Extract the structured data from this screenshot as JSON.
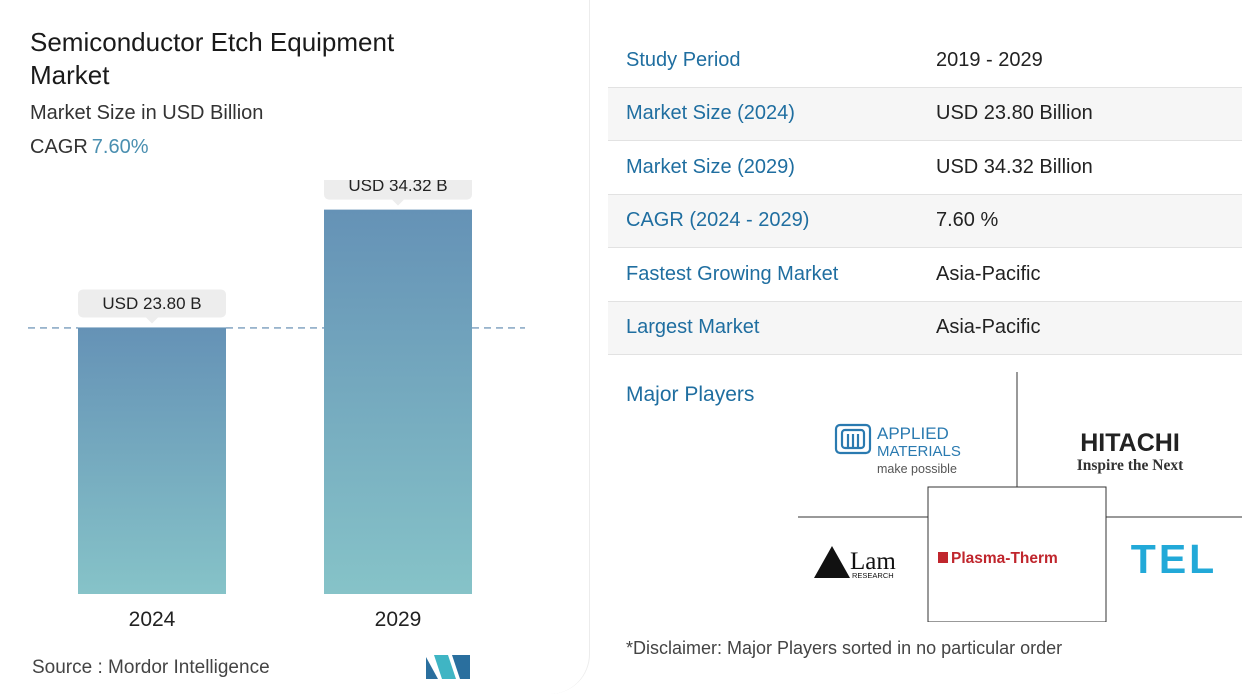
{
  "header": {
    "title": "Semiconductor Etch Equipment Market",
    "subtitle": "Market Size in USD Billion",
    "cagr_label": "CAGR",
    "cagr_value": "7.60%"
  },
  "chart_data": {
    "type": "bar",
    "categories": [
      "2024",
      "2029"
    ],
    "values": [
      23.8,
      34.32
    ],
    "data_labels": [
      "USD 23.80 B",
      "USD 34.32 B"
    ],
    "ylim": [
      0,
      36
    ],
    "reference_line": 23.8,
    "colors": {
      "bar_top": "#6592b6",
      "bar_bottom": "#86c3c8",
      "dashed": "#5b86ad"
    }
  },
  "source": {
    "label": "Source :",
    "name": "Mordor Intelligence"
  },
  "summary": {
    "rows": [
      {
        "key": "Study Period",
        "value": "2019 - 2029"
      },
      {
        "key": "Market Size (2024)",
        "value": "USD 23.80 Billion"
      },
      {
        "key": "Market Size (2029)",
        "value": "USD 34.32 Billion"
      },
      {
        "key": "CAGR (2024 - 2029)",
        "value": "7.60 %"
      },
      {
        "key": "Fastest Growing Market",
        "value": "Asia-Pacific"
      },
      {
        "key": "Largest Market",
        "value": "Asia-Pacific"
      }
    ]
  },
  "players": {
    "title": "Major Players",
    "logos": {
      "applied": {
        "line1": "APPLIED",
        "line2": "MATERIALS",
        "line3": "make possible"
      },
      "hitachi": {
        "line1": "HITACHI",
        "line2": "Inspire the Next"
      },
      "lam": {
        "line1": "Lam",
        "line2": "RESEARCH"
      },
      "plasma": {
        "line1": "Plasma-Therm"
      },
      "tel": {
        "line1": "TEL"
      }
    }
  },
  "disclaimer": "*Disclaimer: Major Players sorted in no particular order"
}
